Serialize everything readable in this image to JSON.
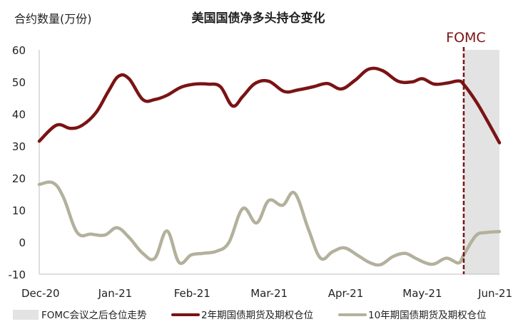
{
  "chart_data": {
    "type": "line",
    "title": "美国国债净多头持仓变化",
    "ylabel": "合约数量(万份)",
    "xlabel": "",
    "ylim": [
      -10,
      60
    ],
    "yticks": [
      60,
      50,
      40,
      30,
      20,
      10,
      0,
      -10
    ],
    "xticks": [
      {
        "label": "Dec-20",
        "x": 0
      },
      {
        "label": "Jan-21",
        "x": 4.4
      },
      {
        "label": "Feb-21",
        "x": 8.86
      },
      {
        "label": "Mar-21",
        "x": 13.32
      },
      {
        "label": "Apr-21",
        "x": 17.76
      },
      {
        "label": "May-21",
        "x": 22.2
      },
      {
        "label": "Jun-21",
        "x": 26.67
      }
    ],
    "xlim": [
      0,
      26.67
    ],
    "grid": false,
    "legend_position": "bottom",
    "shaded_region": {
      "name": "FOMC会议之后仓位走势",
      "x_start": 24.6,
      "x_end": 26.67,
      "color": "#e3e3e3"
    },
    "annotation": {
      "text": "FOMC",
      "x": 24.6,
      "color": "#7a1315"
    },
    "series": [
      {
        "name": "2年期国债期货及期权仓位",
        "color": "#7a1315",
        "x": [
          0,
          1,
          1.8,
          2.5,
          3.3,
          4.0,
          4.6,
          5.2,
          6.0,
          6.7,
          7.4,
          8.2,
          9.0,
          9.8,
          10.5,
          11.2,
          11.8,
          12.5,
          13.3,
          14.2,
          15.0,
          15.9,
          16.7,
          17.5,
          18.3,
          19.1,
          19.9,
          20.8,
          21.6,
          22.2,
          22.9,
          23.7,
          24.3,
          24.6,
          25.3,
          25.9,
          26.67
        ],
        "values": [
          31.5,
          36.5,
          35.5,
          36.5,
          40.5,
          47,
          51.8,
          51,
          44.5,
          44.5,
          45.8,
          48.3,
          49.3,
          49.3,
          48.5,
          42.5,
          45.5,
          49.5,
          50.2,
          47,
          47.5,
          48.5,
          49.5,
          47.8,
          50.5,
          54,
          53.5,
          50.2,
          50,
          51,
          49.3,
          49.7,
          50.3,
          49.2,
          44,
          38.5,
          31
        ]
      },
      {
        "name": "10年期国债期货及期权仓位",
        "color": "#b3b19c",
        "x": [
          0,
          0.8,
          1.4,
          2.2,
          3.0,
          3.8,
          4.5,
          5.2,
          6.0,
          6.7,
          7.4,
          8.1,
          8.8,
          9.5,
          10.3,
          11.0,
          11.8,
          12.6,
          13.3,
          14.1,
          14.8,
          15.6,
          16.3,
          17.0,
          17.7,
          18.5,
          19.2,
          19.8,
          20.5,
          21.2,
          21.8,
          22.4,
          22.9,
          23.6,
          24.3,
          24.6,
          25.3,
          25.9,
          26.67
        ],
        "values": [
          18,
          18.5,
          14,
          3,
          2.5,
          2.2,
          4.5,
          1.5,
          -3.5,
          -5,
          3.5,
          -6.3,
          -4,
          -3.5,
          -2.8,
          0,
          10.5,
          6,
          13,
          11.5,
          15.3,
          4,
          -5,
          -3,
          -1.8,
          -4.3,
          -6.5,
          -7,
          -4.5,
          -3.5,
          -5,
          -6.5,
          -6.8,
          -5,
          -6.5,
          -4,
          2,
          3,
          3.3
        ]
      }
    ]
  }
}
